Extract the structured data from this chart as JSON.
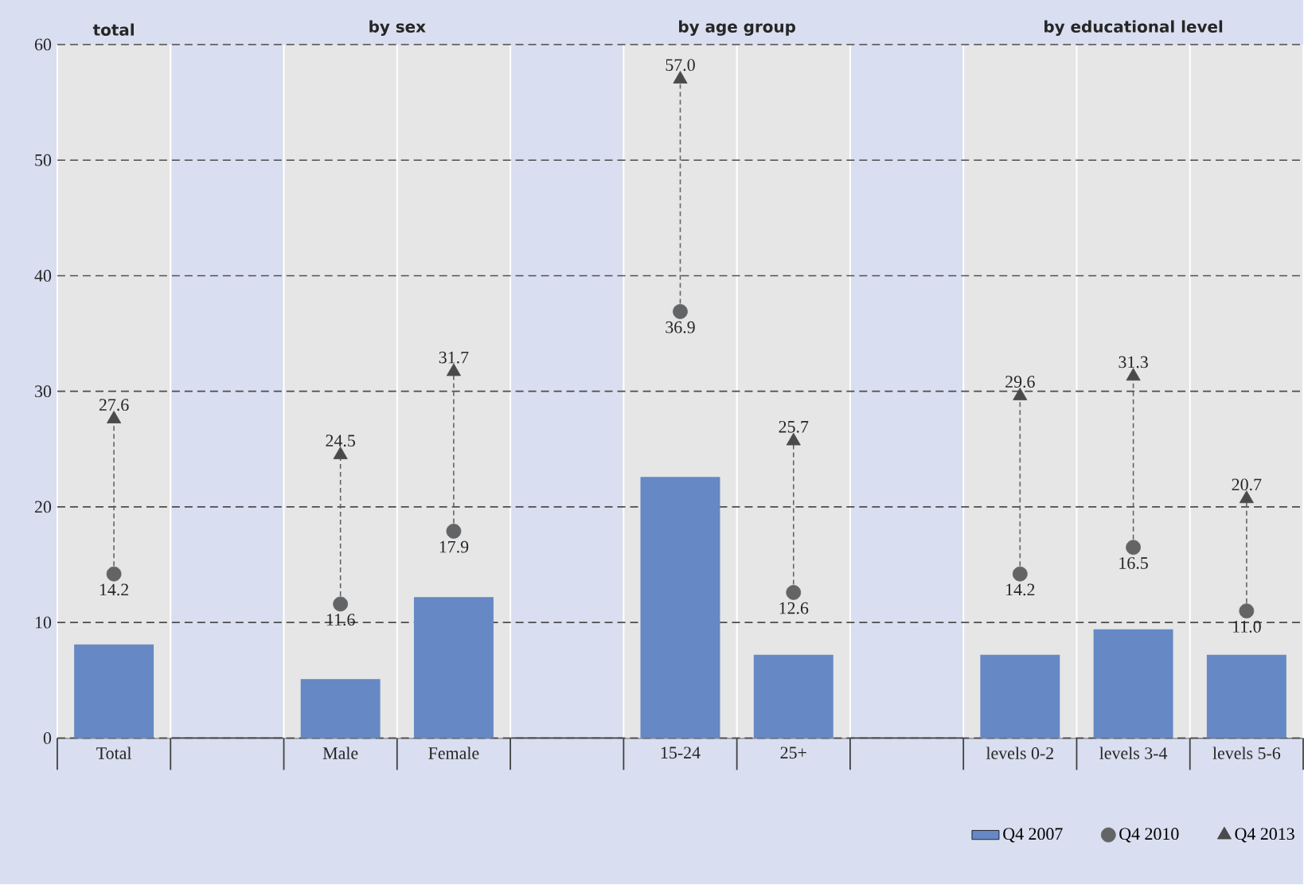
{
  "chart_data": {
    "type": "bar",
    "categories": [
      "Total",
      null,
      "Male",
      "Female",
      null,
      "15-24",
      "25+",
      null,
      "levels 0-2",
      "levels 3-4",
      "levels 5-6"
    ],
    "annotations": [
      "total",
      "by sex",
      "by age group",
      "by educational level"
    ],
    "ylim": [
      0,
      60
    ],
    "yticks": [
      0,
      10,
      20,
      30,
      40,
      50,
      60
    ],
    "grid": "y",
    "legend": "bottom right",
    "series": [
      {
        "name": "Q4 2007",
        "color": "#6688c4",
        "values": [
          8.1,
          null,
          5.1,
          12.2,
          null,
          22.6,
          7.2,
          null,
          7.2,
          9.4,
          7.2
        ]
      },
      {
        "name": "Q4 2010",
        "type": "scatter",
        "marker": "circle",
        "color": "#636466",
        "values": [
          14.2,
          null,
          11.6,
          17.9,
          null,
          36.9,
          12.6,
          null,
          14.2,
          16.5,
          11.0
        ],
        "value_labels": [
          "14.2",
          null,
          "11.6",
          "17.9",
          null,
          "36.9",
          "12.6",
          null,
          "14.2",
          "16.5",
          "11.0"
        ]
      },
      {
        "name": "Q4 2013",
        "type": "scatter",
        "marker": "triangle",
        "color": "#4a4a4c",
        "values": [
          27.6,
          null,
          24.5,
          31.7,
          null,
          57.0,
          25.7,
          null,
          29.6,
          31.3,
          20.7
        ],
        "value_labels": [
          "27.6",
          null,
          "24.5",
          "31.7",
          null,
          "57.0",
          "25.7",
          null,
          "29.6",
          "31.3",
          "20.7"
        ]
      }
    ]
  }
}
